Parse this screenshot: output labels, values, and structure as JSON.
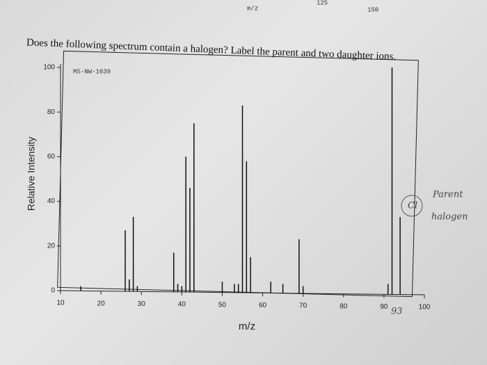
{
  "page_fragments": [
    "m/z",
    "125",
    "150"
  ],
  "question": "Does the following spectrum contain a halogen? Label the parent and two daughter ions.",
  "annotations": [
    "Cl",
    "Parent",
    "halogen",
    "93"
  ],
  "chart_data": {
    "type": "bar",
    "title": "MS-NW-1039",
    "x_label": "m/z",
    "y_label": "Relative Intensity",
    "x": [
      15,
      26,
      27,
      28,
      29,
      38,
      39,
      40,
      41,
      42,
      43,
      50,
      53,
      54,
      55,
      56,
      57,
      62,
      65,
      69,
      70,
      91,
      92,
      94
    ],
    "values": [
      2,
      27,
      5,
      33,
      2,
      17,
      3,
      2,
      60,
      46,
      75,
      4,
      3,
      3,
      83,
      58,
      15,
      4,
      3,
      23,
      2,
      3,
      100,
      33
    ],
    "color": "#111111",
    "xlim": [
      10,
      100
    ],
    "xticks": [
      10,
      20,
      30,
      40,
      50,
      60,
      70,
      80,
      90,
      100
    ],
    "ylim": [
      0,
      100
    ],
    "yticks": [
      0,
      20,
      40,
      60,
      80,
      100
    ]
  }
}
